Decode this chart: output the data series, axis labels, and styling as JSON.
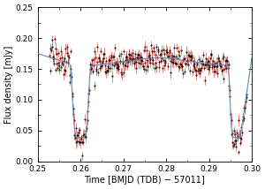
{
  "xlim": [
    0.25,
    0.3
  ],
  "ylim": [
    0.0,
    0.25
  ],
  "xlabel": "Time [BMJD (TDB) − 57011]",
  "ylabel": "Flux density [mJy]",
  "bg_color": "#ffffff",
  "data_color": "#000000",
  "err_color": "#cc1100",
  "model_color": "#6688bb",
  "model_alpha": 0.9,
  "xticks": [
    0.25,
    0.26,
    0.27,
    0.28,
    0.29,
    0.3
  ],
  "yticks": [
    0.0,
    0.05,
    0.1,
    0.15,
    0.2,
    0.25
  ],
  "seed": 17,
  "n_points": 380
}
